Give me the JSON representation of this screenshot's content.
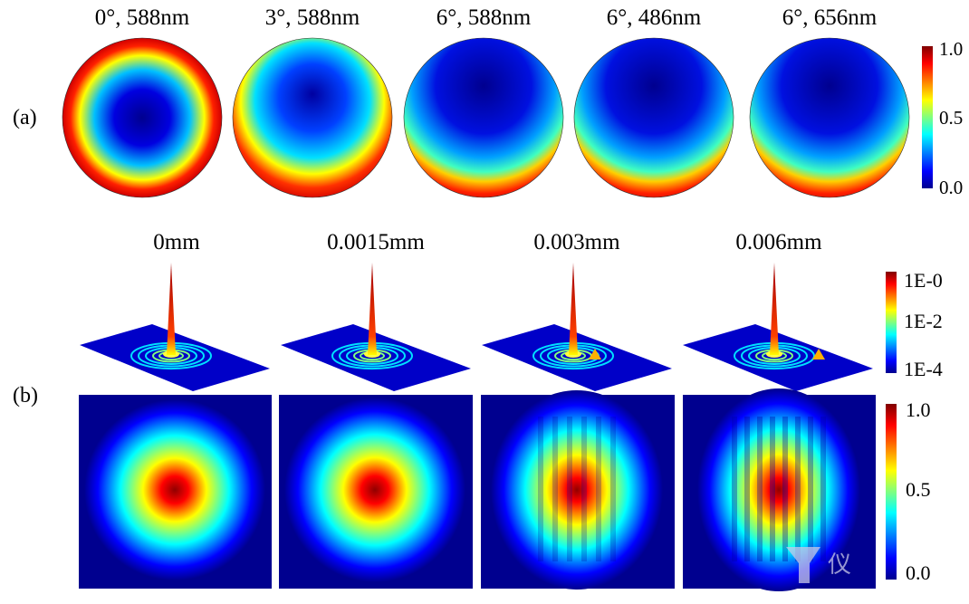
{
  "panel_a": {
    "label": "(a)",
    "titles": [
      "0°, 588nm",
      "3°, 588nm",
      "6°, 588nm",
      "6°, 486nm",
      "6°, 656nm"
    ],
    "colorbar": {
      "max": "1.0",
      "mid": "0.5",
      "min": "0.0"
    }
  },
  "panel_b": {
    "label": "(b)",
    "titles": [
      "0mm",
      "0.0015mm",
      "0.003mm",
      "0.006mm"
    ],
    "colorbar_log": {
      "top": "1E-0",
      "mid": "1E-2",
      "bottom": "1E-4"
    },
    "colorbar": {
      "max": "1.0",
      "mid": "0.5",
      "min": "0.0"
    }
  },
  "watermark": {
    "text": "仪",
    "url": "www.yb"
  },
  "colormap": [
    "#00008f",
    "#0000ff",
    "#00ffff",
    "#ffff00",
    "#ff0000",
    "#800000"
  ]
}
